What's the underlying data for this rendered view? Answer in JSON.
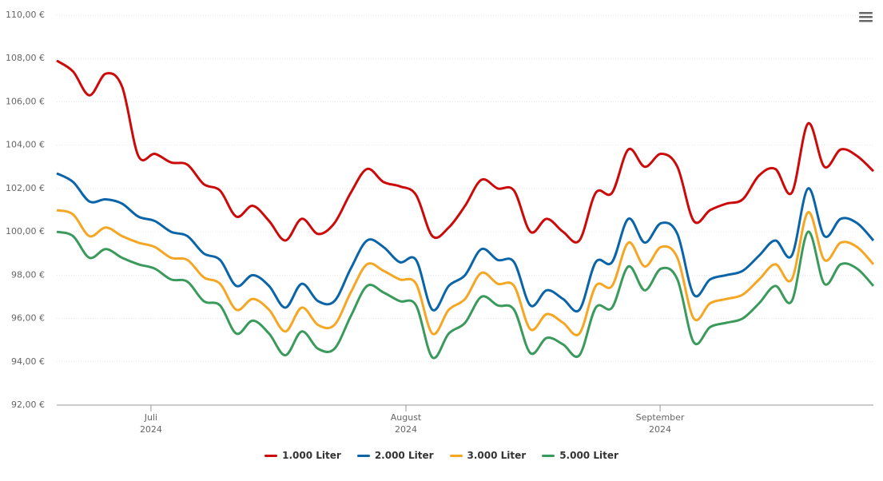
{
  "chart_data": {
    "type": "line",
    "series": [
      {
        "name": "1.000 Liter",
        "color": "#cc0a0a",
        "values": [
          107.9,
          107.4,
          106.3,
          107.3,
          106.7,
          103.5,
          103.6,
          103.2,
          103.1,
          102.2,
          101.9,
          100.7,
          101.2,
          100.5,
          99.6,
          100.6,
          99.9,
          100.4,
          101.8,
          102.9,
          102.3,
          102.1,
          101.7,
          99.8,
          100.2,
          101.2,
          102.4,
          102.0,
          101.9,
          100.0,
          100.6,
          100.0,
          99.6,
          101.8,
          101.8,
          103.8,
          103.0,
          103.6,
          103.0,
          100.5,
          101.0,
          101.3,
          101.5,
          102.6,
          102.9,
          101.8,
          105.0,
          103.0,
          103.8,
          103.5,
          102.8
        ]
      },
      {
        "name": "2.000 Liter",
        "color": "#0a64a8",
        "values": [
          102.7,
          102.3,
          101.4,
          101.5,
          101.3,
          100.7,
          100.5,
          100.0,
          99.8,
          99.0,
          98.7,
          97.5,
          98.0,
          97.5,
          96.5,
          97.6,
          96.8,
          96.8,
          98.3,
          99.6,
          99.3,
          98.6,
          98.7,
          96.4,
          97.5,
          98.0,
          99.2,
          98.7,
          98.6,
          96.6,
          97.3,
          96.9,
          96.4,
          98.6,
          98.6,
          100.6,
          99.5,
          100.4,
          99.9,
          97.1,
          97.8,
          98.0,
          98.2,
          98.9,
          99.6,
          98.9,
          102.0,
          99.8,
          100.6,
          100.4,
          99.6
        ]
      },
      {
        "name": "3.000 Liter",
        "color": "#f5a623",
        "values": [
          101.0,
          100.8,
          99.8,
          100.2,
          99.8,
          99.5,
          99.3,
          98.8,
          98.7,
          97.9,
          97.6,
          96.4,
          96.9,
          96.4,
          95.4,
          96.5,
          95.7,
          95.7,
          97.2,
          98.5,
          98.2,
          97.8,
          97.6,
          95.3,
          96.4,
          96.9,
          98.1,
          97.6,
          97.5,
          95.5,
          96.2,
          95.8,
          95.3,
          97.5,
          97.5,
          99.5,
          98.4,
          99.3,
          98.8,
          96.0,
          96.7,
          96.9,
          97.1,
          97.8,
          98.5,
          97.8,
          100.9,
          98.7,
          99.5,
          99.3,
          98.5
        ]
      },
      {
        "name": "5.000 Liter",
        "color": "#3a9a5c",
        "values": [
          100.0,
          99.8,
          98.8,
          99.2,
          98.8,
          98.5,
          98.3,
          97.8,
          97.7,
          96.8,
          96.6,
          95.3,
          95.9,
          95.3,
          94.3,
          95.4,
          94.6,
          94.6,
          96.1,
          97.5,
          97.2,
          96.8,
          96.6,
          94.2,
          95.3,
          95.8,
          97.0,
          96.6,
          96.4,
          94.4,
          95.1,
          94.8,
          94.3,
          96.5,
          96.5,
          98.4,
          97.3,
          98.3,
          97.8,
          94.9,
          95.6,
          95.8,
          96.0,
          96.7,
          97.5,
          96.8,
          100.0,
          97.6,
          98.5,
          98.3,
          97.5
        ]
      }
    ],
    "xlim": [
      0,
      50
    ],
    "xticks": [
      {
        "value": 5.77,
        "label": "Juli\n2024"
      },
      {
        "value": 21.38,
        "label": "August\n2024"
      },
      {
        "value": 36.94,
        "label": "September\n2024"
      }
    ],
    "ylim": [
      92,
      110
    ],
    "yticks": [
      {
        "value": 92,
        "label": "92,00 €"
      },
      {
        "value": 94,
        "label": "94,00 €"
      },
      {
        "value": 96,
        "label": "96,00 €"
      },
      {
        "value": 98,
        "label": "98,00 €"
      },
      {
        "value": 100,
        "label": "100,00 €"
      },
      {
        "value": 102,
        "label": "102,00 €"
      },
      {
        "value": 104,
        "label": "104,00 €"
      },
      {
        "value": 106,
        "label": "106,00 €"
      },
      {
        "value": 108,
        "label": "108,00 €"
      },
      {
        "value": 110,
        "label": "110,00 €"
      }
    ],
    "grid": true
  }
}
